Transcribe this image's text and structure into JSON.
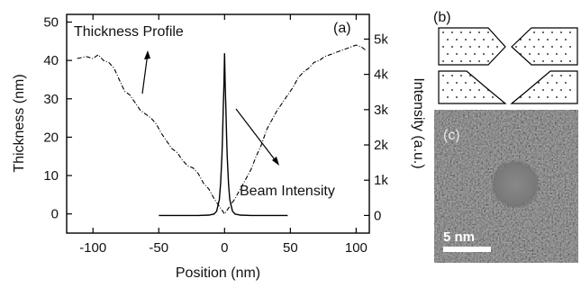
{
  "chart_data": {
    "type": "line",
    "panel_labels": {
      "a": "(a)",
      "b": "(b)",
      "c": "(c)"
    },
    "xlabel": "Position (nm)",
    "ylabel_left": "Thickness (nm)",
    "ylabel_right": "Intensity (a.u.)",
    "xlim": [
      -120,
      110
    ],
    "ylim_left": [
      -5,
      52
    ],
    "ylim_right": [
      -500,
      5700
    ],
    "xticks": [
      -100,
      -50,
      0,
      50,
      100
    ],
    "yticks_left": [
      0,
      10,
      20,
      30,
      40,
      50
    ],
    "yticks_right": [
      {
        "value": 0,
        "label": "0"
      },
      {
        "value": 1000,
        "label": "1k"
      },
      {
        "value": 2000,
        "label": "2k"
      },
      {
        "value": 3000,
        "label": "3k"
      },
      {
        "value": 4000,
        "label": "4k"
      },
      {
        "value": 5000,
        "label": "5k"
      }
    ],
    "annotations": {
      "thickness": "Thickness Profile",
      "beam": "Beam Intensity"
    },
    "series": [
      {
        "axis": "left",
        "style": "dash-dot",
        "x": [
          -112,
          -105,
          -100,
          -96,
          -92,
          -88,
          -84,
          -80,
          -76,
          -72,
          -68,
          -64,
          -60,
          -56,
          -52,
          -48,
          -44,
          -40,
          -36,
          -32,
          -28,
          -24,
          -20,
          -16,
          -12,
          -8,
          -4,
          -2,
          0,
          2,
          4,
          8,
          12,
          16,
          20,
          24,
          28,
          32,
          36,
          40,
          44,
          48,
          52,
          56,
          60,
          64,
          68,
          72,
          76,
          80,
          84,
          88,
          92,
          96,
          100,
          104,
          108
        ],
        "y": [
          40.5,
          41,
          40.5,
          41.5,
          40,
          39.5,
          38,
          35,
          32,
          31,
          29,
          27,
          26,
          25,
          23.5,
          21,
          19,
          17,
          16,
          14,
          12.5,
          12,
          10.5,
          8,
          6.5,
          4,
          2,
          1,
          0,
          1,
          2,
          4,
          6.5,
          9,
          11.5,
          15,
          18,
          22,
          24.5,
          27,
          29,
          31,
          33,
          35.5,
          37,
          38,
          39.5,
          40,
          41,
          41.5,
          42,
          42.5,
          43,
          43.5,
          44,
          43.5,
          42.5
        ]
      },
      {
        "axis": "right",
        "style": "solid",
        "x": [
          -50,
          -20,
          -12,
          -8,
          -6,
          -4,
          -3,
          -2,
          -1.5,
          -1,
          -0.5,
          0,
          0.5,
          1,
          1.5,
          2,
          3,
          4,
          6,
          8,
          12,
          20,
          48
        ],
        "y": [
          0,
          0,
          10,
          40,
          120,
          450,
          900,
          1700,
          2300,
          3000,
          3700,
          4600,
          3700,
          3000,
          2300,
          1700,
          900,
          450,
          120,
          40,
          10,
          0,
          0
        ]
      }
    ]
  },
  "schematic_b": {
    "rows": [
      [
        "taper-right",
        "taper-left"
      ],
      [
        "ramp-right",
        "ramp-left"
      ]
    ]
  },
  "micrograph_c": {
    "scale_bar_label": "5 nm"
  }
}
